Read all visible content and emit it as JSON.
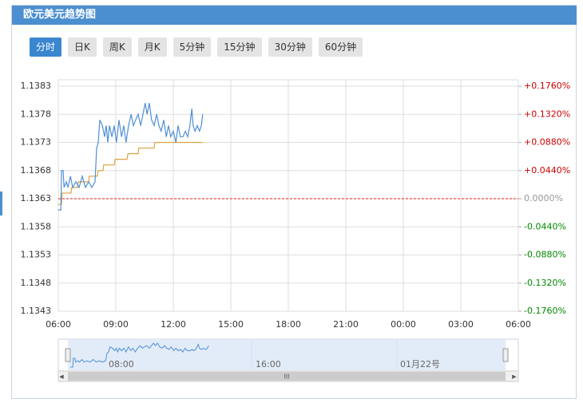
{
  "header": {
    "title": "欧元美元趋势图"
  },
  "tabs": [
    "分时",
    "日K",
    "周K",
    "月K",
    "5分钟",
    "15分钟",
    "30分钟",
    "60分钟"
  ],
  "chart_data": {
    "type": "line",
    "xlim": [
      0,
      1440
    ],
    "xticks": [
      {
        "value": 0,
        "label": "06:00"
      },
      {
        "value": 180,
        "label": "09:00"
      },
      {
        "value": 360,
        "label": "12:00"
      },
      {
        "value": 540,
        "label": "15:00"
      },
      {
        "value": 720,
        "label": "18:00"
      },
      {
        "value": 900,
        "label": "21:00"
      },
      {
        "value": 1080,
        "label": "00:00"
      },
      {
        "value": 1260,
        "label": "03:00"
      },
      {
        "value": 1440,
        "label": "06:00"
      }
    ],
    "ylim": [
      1.1343,
      1.1383
    ],
    "yticks": [
      1.1383,
      1.1378,
      1.1373,
      1.1368,
      1.1363,
      1.1358,
      1.1353,
      1.1348,
      1.1343
    ],
    "y2lim": [
      -0.176,
      0.176
    ],
    "y2ticks": [
      {
        "value": 0.176,
        "label": "+0.1760%"
      },
      {
        "value": 0.132,
        "label": "+0.1320%"
      },
      {
        "value": 0.088,
        "label": "+0.0880%"
      },
      {
        "value": 0.044,
        "label": "+0.0440%"
      },
      {
        "value": 0,
        "label": "0.0000%"
      },
      {
        "value": -0.044,
        "label": "-0.0440%"
      },
      {
        "value": -0.088,
        "label": "-0.0880%"
      },
      {
        "value": -0.132,
        "label": "-0.1320%"
      },
      {
        "value": -0.176,
        "label": "-0.1760%"
      }
    ],
    "grid": true,
    "reference_line": 1.1363,
    "series": [
      {
        "color": "#4f8fd6",
        "x": [
          0,
          8,
          10,
          15,
          18,
          25,
          30,
          38,
          45,
          55,
          65,
          75,
          85,
          95,
          105,
          115,
          120,
          125,
          130,
          138,
          145,
          150,
          155,
          160,
          168,
          175,
          182,
          190,
          198,
          205,
          212,
          220,
          228,
          235,
          242,
          250,
          258,
          265,
          272,
          278,
          285,
          292,
          300,
          308,
          315,
          322,
          330,
          338,
          345,
          352,
          360,
          368,
          375,
          382,
          390,
          398,
          405,
          412,
          418,
          422,
          428,
          435,
          442,
          448,
          452
        ],
        "values": [
          1.1361,
          1.1361,
          1.1368,
          1.1368,
          1.1365,
          1.1366,
          1.1365,
          1.1367,
          1.1365,
          1.1366,
          1.1365,
          1.1367,
          1.1365,
          1.1366,
          1.1365,
          1.1366,
          1.1372,
          1.1373,
          1.1377,
          1.1376,
          1.1374,
          1.1376,
          1.1373,
          1.1376,
          1.1374,
          1.1376,
          1.1373,
          1.1377,
          1.1374,
          1.1376,
          1.1373,
          1.1376,
          1.1378,
          1.1376,
          1.1377,
          1.1378,
          1.1376,
          1.1378,
          1.138,
          1.1378,
          1.138,
          1.1377,
          1.1376,
          1.1378,
          1.1376,
          1.1375,
          1.1377,
          1.1374,
          1.1376,
          1.1374,
          1.1375,
          1.1373,
          1.1376,
          1.1374,
          1.1374,
          1.1375,
          1.1374,
          1.1376,
          1.1379,
          1.1376,
          1.1375,
          1.1376,
          1.1375,
          1.1376,
          1.1378
        ]
      },
      {
        "color": "#d9a442",
        "x": [
          0,
          10,
          12,
          40,
          42,
          60,
          62,
          95,
          97,
          122,
          125,
          140,
          142,
          175,
          178,
          215,
          218,
          250,
          252,
          300,
          302,
          452
        ],
        "values": [
          1.1362,
          1.1362,
          1.1364,
          1.1364,
          1.1365,
          1.1365,
          1.1366,
          1.1366,
          1.1367,
          1.1367,
          1.1368,
          1.1368,
          1.1369,
          1.1369,
          1.137,
          1.137,
          1.1371,
          1.1371,
          1.1372,
          1.1372,
          1.1373,
          1.1373
        ]
      }
    ]
  },
  "navigator": {
    "labels": [
      "08:00",
      "16:00",
      "01月22号"
    ]
  }
}
